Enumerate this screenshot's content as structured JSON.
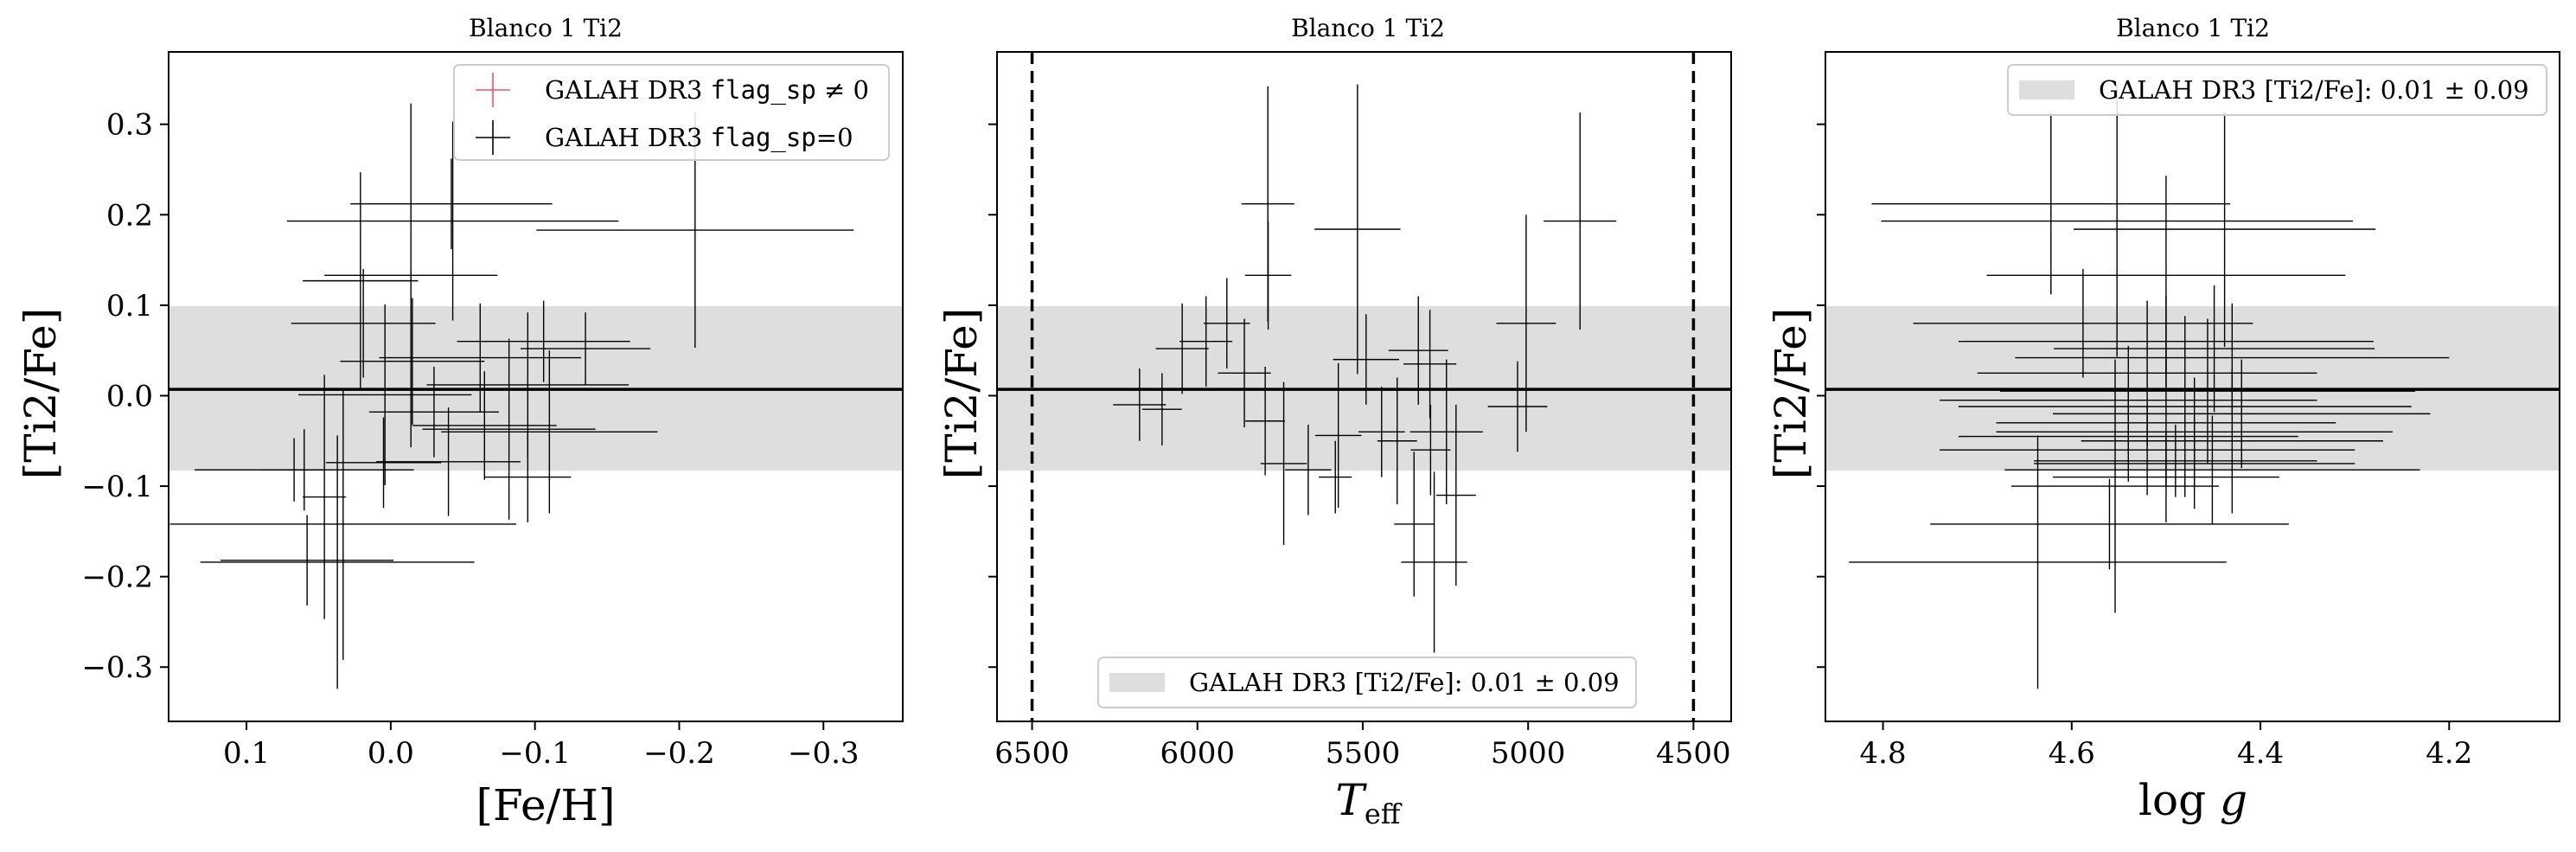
{
  "chart_data": [
    {
      "type": "scatter",
      "title": "Blanco 1 Ti2",
      "xlabel": "[Fe/H]",
      "ylabel": "[Ti2/Fe]",
      "xlim": [
        0.154,
        -0.355
      ],
      "ylim": [
        -0.36,
        0.38
      ],
      "xticks": [
        {
          "value": 0.1,
          "label": "0.1"
        },
        {
          "value": 0.0,
          "label": "0.0"
        },
        {
          "value": -0.1,
          "label": "−0.1"
        },
        {
          "value": -0.2,
          "label": "−0.2"
        },
        {
          "value": -0.3,
          "label": "−0.3"
        }
      ],
      "yticks": [
        {
          "value": 0.3,
          "label": "0.3"
        },
        {
          "value": 0.2,
          "label": "0.2"
        },
        {
          "value": 0.1,
          "label": "0.1"
        },
        {
          "value": 0.0,
          "label": "0.0"
        },
        {
          "value": -0.1,
          "label": "−0.1"
        },
        {
          "value": -0.2,
          "label": "−0.2"
        },
        {
          "value": -0.3,
          "label": "−0.3"
        }
      ],
      "show_ytick_labels": true,
      "band": {
        "low": -0.083,
        "high": 0.099,
        "color": "#dedede"
      },
      "reference_line": 0.007,
      "vlines": [],
      "legend": {
        "placement": "top-right",
        "entries": [
          {
            "kind": "cross",
            "color": "#ff4d5e",
            "text": "GALAH DR3 ",
            "mono": "flag_sp",
            "suffix": " ≠ 0"
          },
          {
            "kind": "cross",
            "color": "#000000",
            "text": "GALAH DR3 ",
            "mono": "flag_sp",
            "suffix": "=0"
          }
        ]
      },
      "points": [
        {
          "x": -0.043,
          "y": 0.193,
          "xerr": 0.115,
          "yerr": 0.11
        },
        {
          "x": -0.014,
          "y": 0.133,
          "xerr": 0.06,
          "yerr": 0.19
        },
        {
          "x": -0.042,
          "y": 0.212,
          "xerr": 0.07,
          "yerr": 0.05
        },
        {
          "x": 0.021,
          "y": 0.127,
          "xerr": 0.04,
          "yerr": 0.12
        },
        {
          "x": -0.211,
          "y": 0.183,
          "xerr": 0.11,
          "yerr": 0.13
        },
        {
          "x": 0.019,
          "y": 0.08,
          "xerr": 0.05,
          "yerr": 0.06
        },
        {
          "x": -0.106,
          "y": 0.06,
          "xerr": 0.06,
          "yerr": 0.045
        },
        {
          "x": -0.062,
          "y": 0.042,
          "xerr": 0.07,
          "yerr": 0.06
        },
        {
          "x": -0.135,
          "y": 0.052,
          "xerr": 0.045,
          "yerr": 0.04
        },
        {
          "x": -0.015,
          "y": 0.038,
          "xerr": 0.05,
          "yerr": 0.07
        },
        {
          "x": -0.095,
          "y": 0.012,
          "xerr": 0.07,
          "yerr": 0.08
        },
        {
          "x": 0.004,
          "y": 0.001,
          "xerr": 0.06,
          "yerr": 0.1
        },
        {
          "x": -0.03,
          "y": -0.018,
          "xerr": 0.045,
          "yerr": 0.05
        },
        {
          "x": -0.065,
          "y": -0.033,
          "xerr": 0.05,
          "yerr": 0.06
        },
        {
          "x": -0.11,
          "y": -0.04,
          "xerr": 0.075,
          "yerr": 0.09
        },
        {
          "x": -0.082,
          "y": -0.037,
          "xerr": 0.06,
          "yerr": 0.1
        },
        {
          "x": 0.06,
          "y": -0.082,
          "xerr": 0.076,
          "yerr": 0.045
        },
        {
          "x": 0.005,
          "y": -0.074,
          "xerr": 0.04,
          "yerr": 0.05
        },
        {
          "x": -0.04,
          "y": -0.073,
          "xerr": 0.05,
          "yerr": 0.06
        },
        {
          "x": 0.067,
          "y": -0.082,
          "xerr": 0.022,
          "yerr": 0.035
        },
        {
          "x": -0.095,
          "y": -0.09,
          "xerr": 0.03,
          "yerr": 0.05
        },
        {
          "x": 0.033,
          "y": -0.142,
          "xerr": 0.12,
          "yerr": 0.15
        },
        {
          "x": 0.046,
          "y": -0.112,
          "xerr": 0.015,
          "yerr": 0.135
        },
        {
          "x": 0.037,
          "y": -0.184,
          "xerr": 0.095,
          "yerr": 0.14
        },
        {
          "x": 0.058,
          "y": -0.182,
          "xerr": 0.06,
          "yerr": 0.05
        }
      ]
    },
    {
      "type": "scatter",
      "title": "Blanco 1 Ti2",
      "xlabel": "T_eff",
      "ylabel": "[Ti2/Fe]",
      "xlim": [
        6606,
        4386
      ],
      "ylim": [
        -0.36,
        0.38
      ],
      "xticks": [
        {
          "value": 6500,
          "label": "6500"
        },
        {
          "value": 6000,
          "label": "6000"
        },
        {
          "value": 5500,
          "label": "5500"
        },
        {
          "value": 5000,
          "label": "5000"
        },
        {
          "value": 4500,
          "label": "4500"
        }
      ],
      "yticks": [
        {
          "value": 0.3,
          "label": "0.3"
        },
        {
          "value": 0.2,
          "label": "0.2"
        },
        {
          "value": 0.1,
          "label": "0.1"
        },
        {
          "value": 0.0,
          "label": "0.0"
        },
        {
          "value": -0.1,
          "label": "−0.1"
        },
        {
          "value": -0.2,
          "label": "−0.2"
        },
        {
          "value": -0.3,
          "label": "−0.3"
        }
      ],
      "show_ytick_labels": false,
      "band": {
        "low": -0.083,
        "high": 0.099,
        "color": "#dedede"
      },
      "reference_line": 0.007,
      "vlines": [
        6500,
        4500
      ],
      "legend": {
        "placement": "bottom-center",
        "entries": [
          {
            "kind": "patch",
            "color": "#dedede",
            "text": "GALAH DR3 [Ti2/Fe]: 0.01 ± 0.09"
          }
        ]
      },
      "points": [
        {
          "x": 5787,
          "y": 0.212,
          "xerr": 80,
          "yerr": 0.13
        },
        {
          "x": 5516,
          "y": 0.184,
          "xerr": 130,
          "yerr": 0.16
        },
        {
          "x": 4843,
          "y": 0.193,
          "xerr": 110,
          "yerr": 0.12
        },
        {
          "x": 5786,
          "y": 0.133,
          "xerr": 70,
          "yerr": 0.06
        },
        {
          "x": 5911,
          "y": 0.08,
          "xerr": 70,
          "yerr": 0.05
        },
        {
          "x": 5974,
          "y": 0.06,
          "xerr": 80,
          "yerr": 0.05
        },
        {
          "x": 6046,
          "y": 0.052,
          "xerr": 80,
          "yerr": 0.05
        },
        {
          "x": 5332,
          "y": 0.05,
          "xerr": 90,
          "yerr": 0.06
        },
        {
          "x": 5490,
          "y": 0.04,
          "xerr": 100,
          "yerr": 0.05
        },
        {
          "x": 5297,
          "y": 0.035,
          "xerr": 80,
          "yerr": 0.06
        },
        {
          "x": 5006,
          "y": 0.08,
          "xerr": 90,
          "yerr": 0.12
        },
        {
          "x": 5858,
          "y": 0.025,
          "xerr": 80,
          "yerr": 0.06
        },
        {
          "x": 6175,
          "y": -0.01,
          "xerr": 80,
          "yerr": 0.04
        },
        {
          "x": 6107,
          "y": -0.015,
          "xerr": 60,
          "yerr": 0.04
        },
        {
          "x": 5032,
          "y": -0.012,
          "xerr": 90,
          "yerr": 0.05
        },
        {
          "x": 5795,
          "y": -0.028,
          "xerr": 60,
          "yerr": 0.06
        },
        {
          "x": 5574,
          "y": -0.044,
          "xerr": 70,
          "yerr": 0.08
        },
        {
          "x": 5443,
          "y": -0.04,
          "xerr": 70,
          "yerr": 0.05
        },
        {
          "x": 5247,
          "y": -0.04,
          "xerr": 110,
          "yerr": 0.08
        },
        {
          "x": 5396,
          "y": -0.05,
          "xerr": 60,
          "yerr": 0.07
        },
        {
          "x": 5295,
          "y": -0.06,
          "xerr": 60,
          "yerr": 0.05
        },
        {
          "x": 5739,
          "y": -0.075,
          "xerr": 70,
          "yerr": 0.09
        },
        {
          "x": 5665,
          "y": -0.082,
          "xerr": 70,
          "yerr": 0.05
        },
        {
          "x": 5583,
          "y": -0.09,
          "xerr": 50,
          "yerr": 0.04
        },
        {
          "x": 5218,
          "y": -0.11,
          "xerr": 60,
          "yerr": 0.1
        },
        {
          "x": 5345,
          "y": -0.142,
          "xerr": 60,
          "yerr": 0.08
        },
        {
          "x": 5284,
          "y": -0.184,
          "xerr": 100,
          "yerr": 0.1
        }
      ]
    },
    {
      "type": "scatter",
      "title": "Blanco 1 Ti2",
      "xlabel": "log g",
      "ylabel": "[Ti2/Fe]",
      "xlim": [
        4.861,
        4.083
      ],
      "ylim": [
        -0.36,
        0.38
      ],
      "xticks": [
        {
          "value": 4.8,
          "label": "4.8"
        },
        {
          "value": 4.6,
          "label": "4.6"
        },
        {
          "value": 4.4,
          "label": "4.4"
        },
        {
          "value": 4.2,
          "label": "4.2"
        }
      ],
      "yticks": [
        {
          "value": 0.3,
          "label": "0.3"
        },
        {
          "value": 0.2,
          "label": "0.2"
        },
        {
          "value": 0.1,
          "label": "0.1"
        },
        {
          "value": 0.0,
          "label": "0.0"
        },
        {
          "value": -0.1,
          "label": "−0.1"
        },
        {
          "value": -0.2,
          "label": "−0.2"
        },
        {
          "value": -0.3,
          "label": "−0.3"
        }
      ],
      "show_ytick_labels": false,
      "band": {
        "low": -0.083,
        "high": 0.099,
        "color": "#dedede"
      },
      "reference_line": 0.007,
      "vlines": [],
      "legend": {
        "placement": "top-right",
        "entries": [
          {
            "kind": "patch",
            "color": "#dedede",
            "text": "GALAH DR3 [Ti2/Fe]: 0.01 ± 0.09"
          }
        ]
      },
      "points": [
        {
          "x": 4.622,
          "y": 0.212,
          "xerr": 0.19,
          "yerr": 0.1
        },
        {
          "x": 4.552,
          "y": 0.193,
          "xerr": 0.25,
          "yerr": 0.15
        },
        {
          "x": 4.438,
          "y": 0.184,
          "xerr": 0.16,
          "yerr": 0.13
        },
        {
          "x": 4.5,
          "y": 0.133,
          "xerr": 0.19,
          "yerr": 0.11
        },
        {
          "x": 4.588,
          "y": 0.08,
          "xerr": 0.18,
          "yerr": 0.06
        },
        {
          "x": 4.5,
          "y": 0.06,
          "xerr": 0.22,
          "yerr": 0.05
        },
        {
          "x": 4.449,
          "y": 0.052,
          "xerr": 0.17,
          "yerr": 0.07
        },
        {
          "x": 4.43,
          "y": 0.042,
          "xerr": 0.23,
          "yerr": 0.06
        },
        {
          "x": 4.52,
          "y": 0.025,
          "xerr": 0.18,
          "yerr": 0.08
        },
        {
          "x": 4.456,
          "y": 0.005,
          "xerr": 0.22,
          "yerr": 0.08
        },
        {
          "x": 4.54,
          "y": -0.005,
          "xerr": 0.2,
          "yerr": 0.06
        },
        {
          "x": 4.48,
          "y": -0.012,
          "xerr": 0.24,
          "yerr": 0.1
        },
        {
          "x": 4.42,
          "y": -0.02,
          "xerr": 0.2,
          "yerr": 0.06
        },
        {
          "x": 4.5,
          "y": -0.03,
          "xerr": 0.18,
          "yerr": 0.07
        },
        {
          "x": 4.47,
          "y": -0.04,
          "xerr": 0.21,
          "yerr": 0.06
        },
        {
          "x": 4.54,
          "y": -0.045,
          "xerr": 0.18,
          "yerr": 0.05
        },
        {
          "x": 4.43,
          "y": -0.05,
          "xerr": 0.16,
          "yerr": 0.08
        },
        {
          "x": 4.52,
          "y": -0.06,
          "xerr": 0.22,
          "yerr": 0.05
        },
        {
          "x": 4.49,
          "y": -0.072,
          "xerr": 0.15,
          "yerr": 0.04
        },
        {
          "x": 4.47,
          "y": -0.075,
          "xerr": 0.17,
          "yerr": 0.05
        },
        {
          "x": 4.451,
          "y": -0.082,
          "xerr": 0.22,
          "yerr": 0.06
        },
        {
          "x": 4.5,
          "y": -0.09,
          "xerr": 0.12,
          "yerr": 0.05
        },
        {
          "x": 4.554,
          "y": -0.1,
          "xerr": 0.11,
          "yerr": 0.14
        },
        {
          "x": 4.56,
          "y": -0.142,
          "xerr": 0.19,
          "yerr": 0.05
        },
        {
          "x": 4.636,
          "y": -0.184,
          "xerr": 0.2,
          "yerr": 0.14
        }
      ]
    }
  ]
}
